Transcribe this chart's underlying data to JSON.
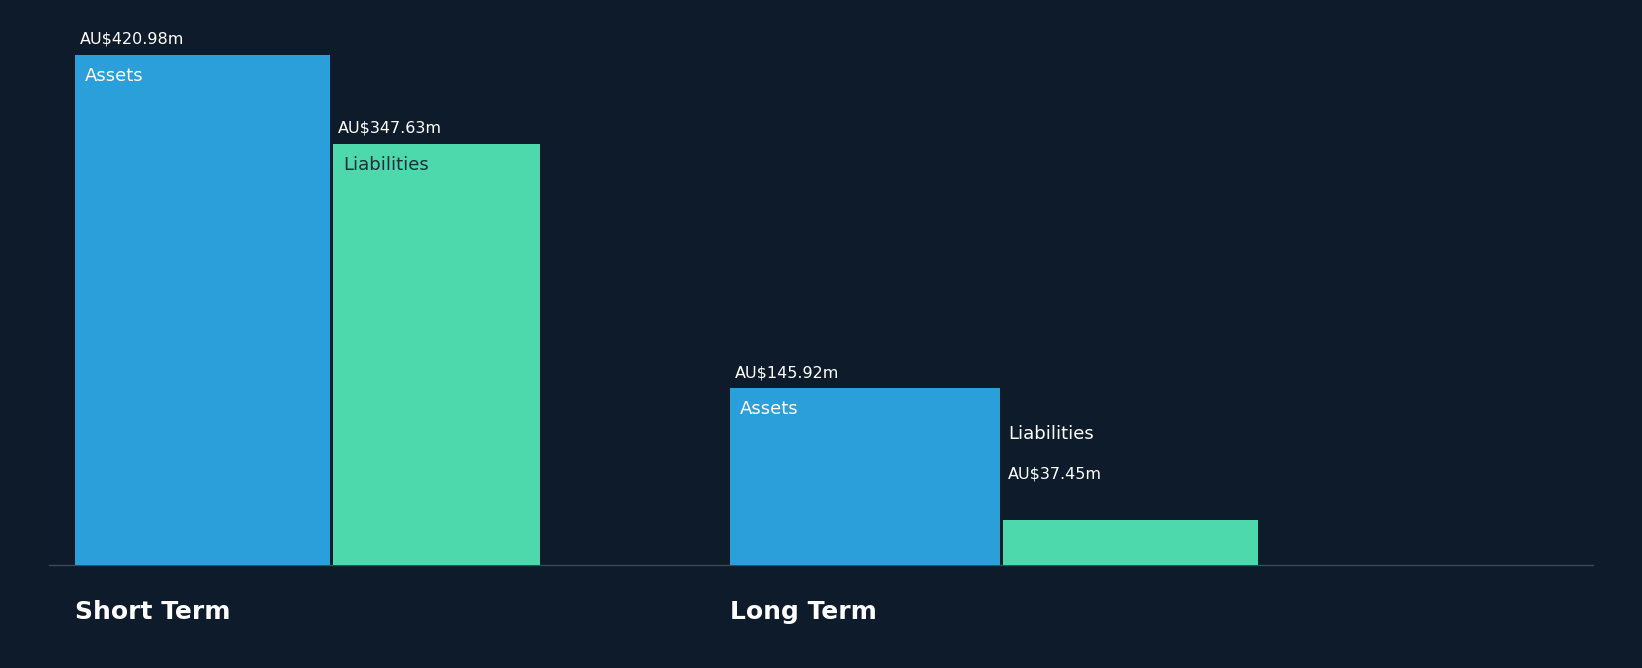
{
  "background_color": "#0d1b2a",
  "bar_color_assets": "#2b9fd9",
  "bar_color_liabilities": "#4dd9ac",
  "text_color": "#ffffff",
  "label_color_liabilities_st": "#1a2e3a",
  "short_term_assets": 420.98,
  "short_term_liabilities": 347.63,
  "long_term_assets": 145.92,
  "long_term_liabilities": 37.45,
  "short_term_label": "Short Term",
  "long_term_label": "Long Term",
  "assets_label": "Assets",
  "liabilities_label": "Liabilities",
  "short_term_assets_value_label": "AU$420.98m",
  "short_term_liabilities_value_label": "AU$347.63m",
  "long_term_assets_value_label": "AU$145.92m",
  "long_term_liabilities_value_label": "AU$37.45m",
  "figsize": [
    16.42,
    6.68
  ],
  "dpi": 100
}
